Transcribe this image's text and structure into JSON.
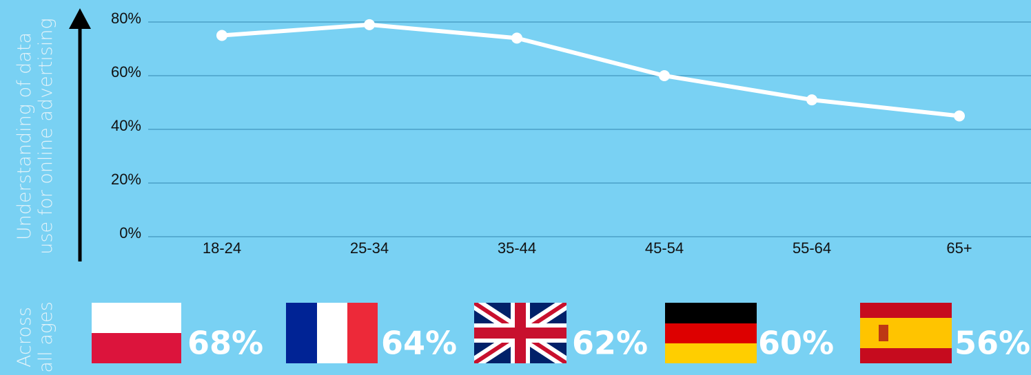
{
  "chart_data": {
    "type": "line",
    "y_label_lines": [
      "Understanding of data",
      "use for online advertising"
    ],
    "categories": [
      "18-24",
      "25-34",
      "35-44",
      "45-54",
      "55-64",
      "65+"
    ],
    "series": [
      {
        "color": "#ffffff",
        "values": [
          75,
          79,
          74,
          60,
          51,
          45
        ]
      }
    ],
    "ylim": [
      0,
      80
    ],
    "yticks": [
      {
        "value": 0,
        "label": "0%"
      },
      {
        "value": 20,
        "label": "20%"
      },
      {
        "value": 40,
        "label": "40%"
      },
      {
        "value": 60,
        "label": "60%"
      },
      {
        "value": 80,
        "label": "80%"
      }
    ],
    "grid": true
  },
  "summary": {
    "label_lines": [
      "Across",
      "all ages"
    ],
    "values": [
      68,
      64,
      62,
      60,
      56
    ],
    "value_labels": [
      "68%",
      "64%",
      "62%",
      "60%",
      "56%"
    ]
  }
}
